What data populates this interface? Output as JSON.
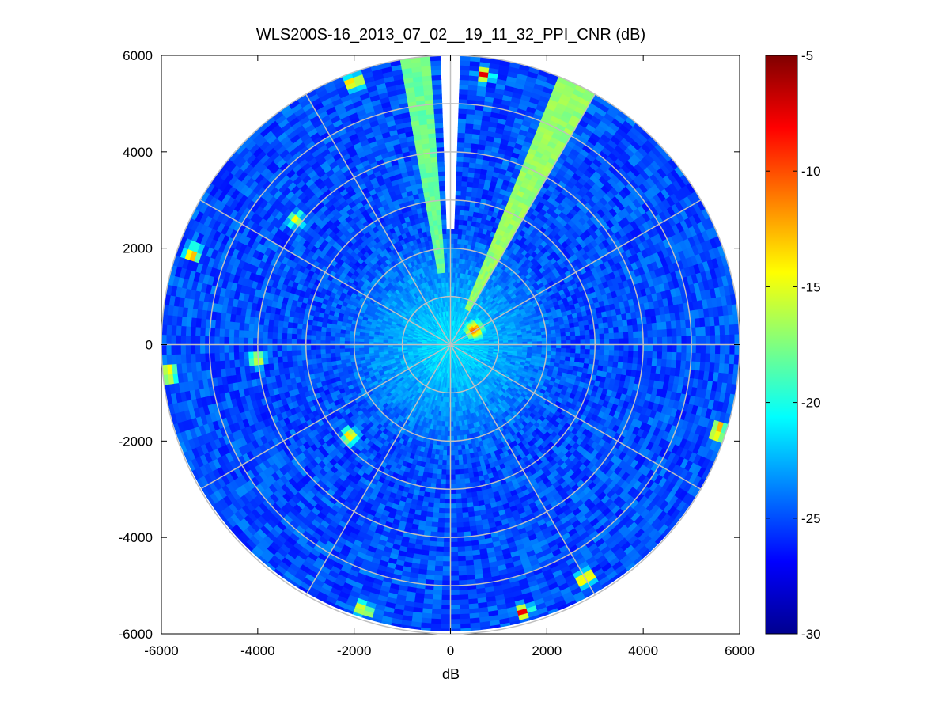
{
  "chart_data": {
    "type": "heatmap",
    "subtype": "polar-ppi",
    "title": "WLS200S-16_2013_07_02__19_11_32_PPI_CNR (dB)",
    "xlabel": "dB",
    "ylabel": "",
    "xlim": [
      -6000,
      6000
    ],
    "ylim": [
      -6000,
      6000
    ],
    "x_ticks": [
      "-6000",
      "-4000",
      "-2000",
      "0",
      "2000",
      "4000",
      "6000"
    ],
    "y_ticks": [
      "6000",
      "4000",
      "2000",
      "0",
      "-2000",
      "-4000",
      "-6000"
    ],
    "range_rings": [
      1000,
      2000,
      3000,
      4000,
      5000,
      6000
    ],
    "spokes_deg": [
      0,
      30,
      60,
      90,
      120,
      150,
      180,
      210,
      240,
      270,
      300,
      330
    ],
    "grid": true,
    "colormap": "jet",
    "colorbar": {
      "min": -30,
      "max": -5,
      "ticks": [
        "-5",
        "-10",
        "-15",
        "-20",
        "-25",
        "-30"
      ]
    },
    "background_cnr_db": -25,
    "near_field": {
      "radius_m": 2500,
      "cnr_db": -21
    },
    "hot_spots": [
      {
        "x": -2000,
        "y": 5450,
        "cnr_db": -6
      },
      {
        "x": 700,
        "y": 5600,
        "cnr_db": -7
      },
      {
        "x": -5350,
        "y": 1900,
        "cnr_db": -8
      },
      {
        "x": -5850,
        "y": -600,
        "cnr_db": -7
      },
      {
        "x": -2100,
        "y": -1900,
        "cnr_db": -10
      },
      {
        "x": 5550,
        "y": -1800,
        "cnr_db": -6
      },
      {
        "x": 2800,
        "y": -4850,
        "cnr_db": -6
      },
      {
        "x": 1500,
        "y": -5550,
        "cnr_db": -7
      },
      {
        "x": -1800,
        "y": -5500,
        "cnr_db": -8
      },
      {
        "x": 500,
        "y": 300,
        "cnr_db": -8
      },
      {
        "x": -3200,
        "y": 2600,
        "cnr_db": -14
      },
      {
        "x": -4000,
        "y": -300,
        "cnr_db": -12
      }
    ],
    "beams": [
      {
        "az_start_deg": -9,
        "az_end_deg": -4,
        "r_start_m": 1500,
        "r_end_m": 6000,
        "cnr_db": -18
      },
      {
        "az_start_deg": 23,
        "az_end_deg": 30,
        "r_start_m": 800,
        "r_end_m": 6000,
        "cnr_db": -17
      }
    ],
    "no_data_sector": {
      "az_start_deg": -1,
      "az_end_deg": 1,
      "r_start_m": 2400,
      "r_end_m": 6000
    }
  }
}
